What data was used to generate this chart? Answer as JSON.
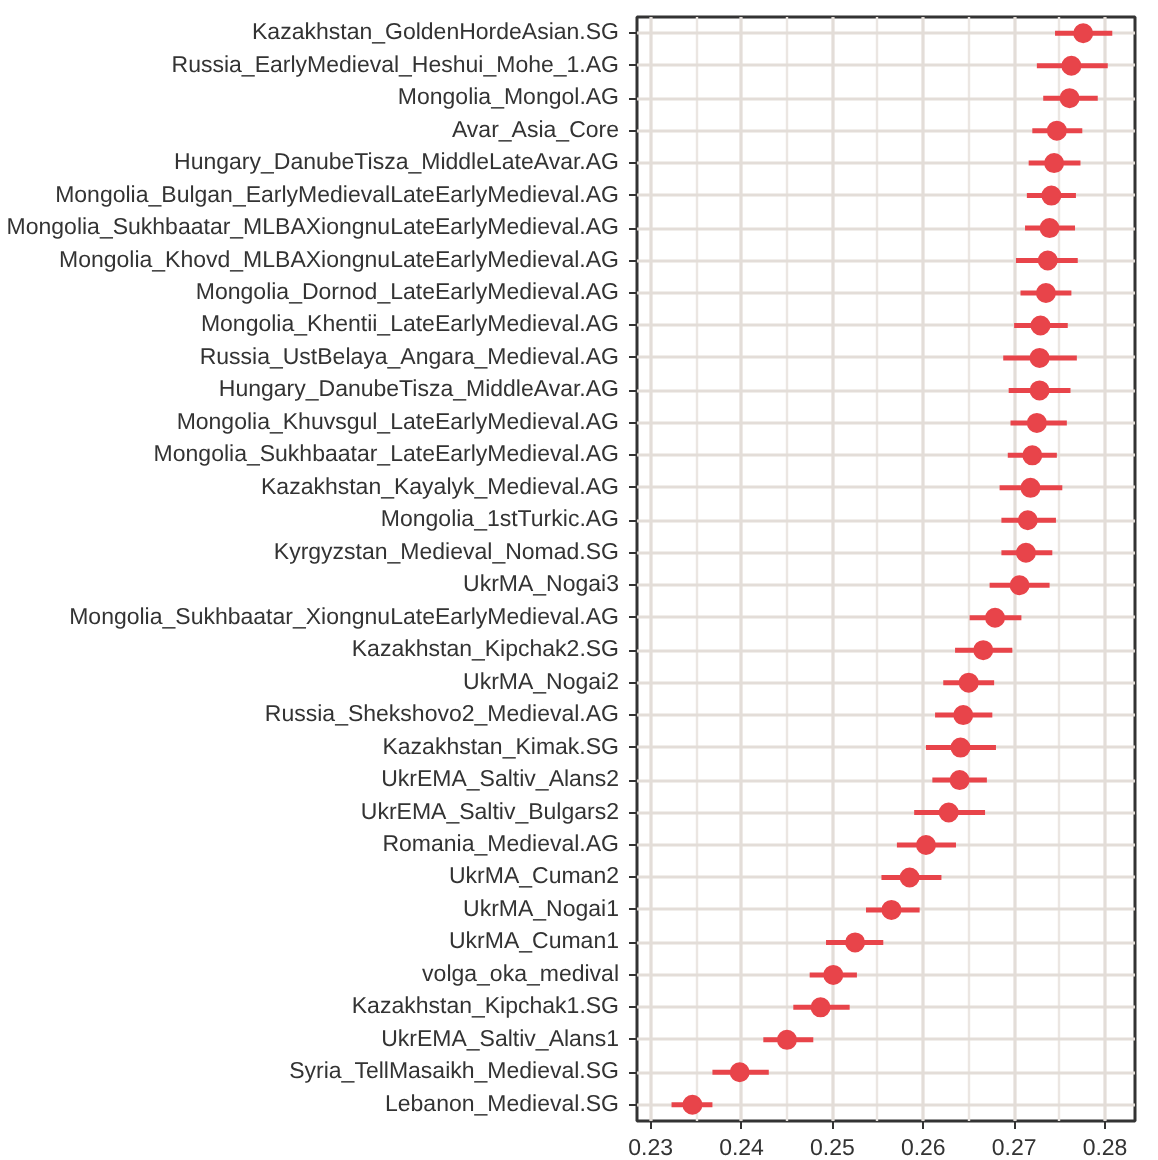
{
  "chart_data": {
    "type": "scatter",
    "orientation": "horizontal",
    "categories": [
      "Kazakhstan_GoldenHordeAsian.SG",
      "Russia_EarlyMedieval_Heshui_Mohe_1.AG",
      "Mongolia_Mongol.AG",
      "Avar_Asia_Core",
      "Hungary_DanubeTisza_MiddleLateAvar.AG",
      "Mongolia_Bulgan_EarlyMedievalLateEarlyMedieval.AG",
      "Mongolia_Sukhbaatar_MLBAXiongnuLateEarlyMedieval.AG",
      "Mongolia_Khovd_MLBAXiongnuLateEarlyMedieval.AG",
      "Mongolia_Dornod_LateEarlyMedieval.AG",
      "Mongolia_Khentii_LateEarlyMedieval.AG",
      "Russia_UstBelaya_Angara_Medieval.AG",
      "Hungary_DanubeTisza_MiddleAvar.AG",
      "Mongolia_Khuvsgul_LateEarlyMedieval.AG",
      "Mongolia_Sukhbaatar_LateEarlyMedieval.AG",
      "Kazakhstan_Kayalyk_Medieval.AG",
      "Mongolia_1stTurkic.AG",
      "Kyrgyzstan_Medieval_Nomad.SG",
      "UkrMA_Nogai3",
      "Mongolia_Sukhbaatar_XiongnuLateEarlyMedieval.AG",
      "Kazakhstan_Kipchak2.SG",
      "UkrMA_Nogai2",
      "Russia_Shekshovo2_Medieval.AG",
      "Kazakhstan_Kimak.SG",
      "UkrEMA_Saltiv_Alans2",
      "UkrEMA_Saltiv_Bulgars2",
      "Romania_Medieval.AG",
      "UkrMA_Cuman2",
      "UkrMA_Nogai1",
      "UkrMA_Cuman1",
      "volga_oka_medival",
      "Kazakhstan_Kipchak1.SG",
      "UkrEMA_Saltiv_Alans1",
      "Syria_TellMasaikh_Medieval.SG",
      "Lebanon_Medieval.SG"
    ],
    "series": [
      {
        "color": "#e8444a",
        "values": [
          0.2776,
          0.2763,
          0.2761,
          0.2747,
          0.2744,
          0.2741,
          0.2739,
          0.2737,
          0.2735,
          0.2729,
          0.2728,
          0.2728,
          0.2725,
          0.272,
          0.2718,
          0.2715,
          0.2713,
          0.2706,
          0.2679,
          0.2666,
          0.265,
          0.2644,
          0.2641,
          0.264,
          0.2628,
          0.2603,
          0.2585,
          0.2565,
          0.2525,
          0.2501,
          0.2487,
          0.245,
          0.2398,
          0.2346
        ],
        "errors": [
          [
            0.2745,
            0.2808
          ],
          [
            0.2725,
            0.2803
          ],
          [
            0.2732,
            0.2792
          ],
          [
            0.272,
            0.2775
          ],
          [
            0.2716,
            0.2773
          ],
          [
            0.2714,
            0.2768
          ],
          [
            0.2712,
            0.2767
          ],
          [
            0.2702,
            0.277
          ],
          [
            0.2707,
            0.2763
          ],
          [
            0.27,
            0.2759
          ],
          [
            0.2688,
            0.2769
          ],
          [
            0.2694,
            0.2762
          ],
          [
            0.2696,
            0.2758
          ],
          [
            0.2693,
            0.2747
          ],
          [
            0.2684,
            0.2753
          ],
          [
            0.2686,
            0.2746
          ],
          [
            0.2686,
            0.2742
          ],
          [
            0.2673,
            0.2739
          ],
          [
            0.2651,
            0.2708
          ],
          [
            0.2635,
            0.2698
          ],
          [
            0.2622,
            0.2678
          ],
          [
            0.2613,
            0.2676
          ],
          [
            0.2603,
            0.268
          ],
          [
            0.261,
            0.267
          ],
          [
            0.259,
            0.2668
          ],
          [
            0.2571,
            0.2636
          ],
          [
            0.2554,
            0.262
          ],
          [
            0.2537,
            0.2596
          ],
          [
            0.2493,
            0.2556
          ],
          [
            0.2475,
            0.2527
          ],
          [
            0.2457,
            0.2519
          ],
          [
            0.2424,
            0.2479
          ],
          [
            0.2368,
            0.243
          ],
          [
            0.2323,
            0.2368
          ]
        ]
      }
    ],
    "xlim": [
      0.2285,
      0.2833
    ],
    "xticks": [
      0.23,
      0.24,
      0.25,
      0.26,
      0.27,
      0.28
    ],
    "grid": true,
    "marker": "circle"
  }
}
